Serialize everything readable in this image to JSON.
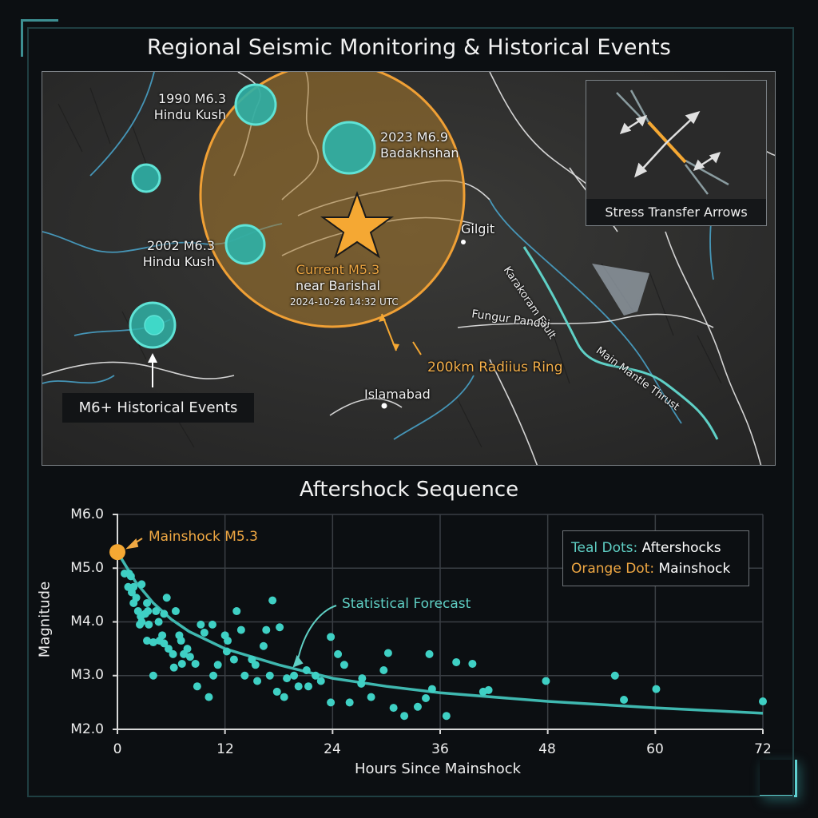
{
  "title": "Regional Seismic Monitoring & Historical Events",
  "colors": {
    "background": "#0c0f12",
    "teal": "#3fd0c4",
    "orange": "#f5a833",
    "ring_fill": "#7a5a2a",
    "grid": "#3a3f44",
    "axis": "#d8d8d8"
  },
  "map": {
    "historical_events": [
      {
        "year": "1990 M6.3",
        "region": "Hindu Kush"
      },
      {
        "year": "2023 M6.9",
        "region": "Badakhshan"
      },
      {
        "year": "2002 M6.3",
        "region": "Hindu Kush"
      }
    ],
    "current_event": {
      "label": "Current M5.3",
      "location": "near Barishal",
      "timestamp": "2024-10-26 14:32 UTC"
    },
    "places": {
      "gilgit": "Gilgit",
      "islamabad": "Islamabad",
      "fungur": "Fungur Pandlii"
    },
    "faults": {
      "karakoram": "Karakoram Fault",
      "mmt": "Main Mantle Thrust"
    },
    "ring_label": "200km Radiius Ring",
    "callout_label": "M6+ Historical Events",
    "inset_caption": "Stress Transfer Arrows"
  },
  "chart": {
    "title": "Aftershock Sequence",
    "mainshock_annotation": "Mainshock M5.3",
    "forecast_annotation": "Statistical Forecast",
    "legend": {
      "teal_key": "Teal Dots:",
      "teal_value": "Aftershocks",
      "orange_key": "Orange Dot:",
      "orange_value": "Mainshock"
    },
    "y_ticks": [
      "M6.0",
      "M5.0",
      "M4.0",
      "M3.0",
      "M2.0"
    ],
    "x_ticks": [
      "0",
      "12",
      "24",
      "36",
      "48",
      "60",
      "72"
    ],
    "ylabel": "Magnitude",
    "xlabel": "Hours Since Mainshock"
  },
  "chart_data": {
    "type": "scatter",
    "title": "Aftershock Sequence",
    "xlabel": "Hours Since Mainshock",
    "ylabel": "Magnitude",
    "xlim": [
      0,
      72
    ],
    "ylim": [
      2.0,
      6.0
    ],
    "x_ticks": [
      0,
      12,
      24,
      36,
      48,
      60,
      72
    ],
    "y_ticks": [
      2.0,
      3.0,
      4.0,
      5.0,
      6.0
    ],
    "grid": true,
    "legend_position": "upper right",
    "legend": [
      "Teal Dots: Aftershocks",
      "Orange Dot: Mainshock"
    ],
    "series": [
      {
        "name": "Mainshock",
        "color": "#f5a833",
        "points": [
          [
            0,
            5.3
          ]
        ]
      },
      {
        "name": "Aftershocks",
        "color": "#3fd0c4",
        "points": [
          [
            0.8,
            4.9
          ],
          [
            1.3,
            4.9
          ],
          [
            1.5,
            4.85
          ],
          [
            1.2,
            4.65
          ],
          [
            1.8,
            4.65
          ],
          [
            2.7,
            4.7
          ],
          [
            1.6,
            4.55
          ],
          [
            2.1,
            4.45
          ],
          [
            1.8,
            4.35
          ],
          [
            2.3,
            4.2
          ],
          [
            2.6,
            4.1
          ],
          [
            2.7,
            4.0
          ],
          [
            2.5,
            3.95
          ],
          [
            3.3,
            4.35
          ],
          [
            3.1,
            4.15
          ],
          [
            3.4,
            4.2
          ],
          [
            3.5,
            3.95
          ],
          [
            4.3,
            4.2
          ],
          [
            4.6,
            4.0
          ],
          [
            4.7,
            3.65
          ],
          [
            5.0,
            3.75
          ],
          [
            3.3,
            3.65
          ],
          [
            4.0,
            3.62
          ],
          [
            5.2,
            3.6
          ],
          [
            5.5,
            4.45
          ],
          [
            5.2,
            4.15
          ],
          [
            6.5,
            4.2
          ],
          [
            5.7,
            3.5
          ],
          [
            6.2,
            3.4
          ],
          [
            6.9,
            3.75
          ],
          [
            7.1,
            3.65
          ],
          [
            7.4,
            3.4
          ],
          [
            4.0,
            3.0
          ],
          [
            6.3,
            3.15
          ],
          [
            7.8,
            3.5
          ],
          [
            8.1,
            3.35
          ],
          [
            7.2,
            3.22
          ],
          [
            8.7,
            3.22
          ],
          [
            8.9,
            2.8
          ],
          [
            10.2,
            2.6
          ],
          [
            9.3,
            3.95
          ],
          [
            9.7,
            3.8
          ],
          [
            10.6,
            3.95
          ],
          [
            10.7,
            3.0
          ],
          [
            11.2,
            3.2
          ],
          [
            12.0,
            3.75
          ],
          [
            12.3,
            3.65
          ],
          [
            12.2,
            3.45
          ],
          [
            13.3,
            4.2
          ],
          [
            13.8,
            3.85
          ],
          [
            13.0,
            3.3
          ],
          [
            14.2,
            3.0
          ],
          [
            15.0,
            3.3
          ],
          [
            15.4,
            3.2
          ],
          [
            15.6,
            2.9
          ],
          [
            16.3,
            3.55
          ],
          [
            16.6,
            3.85
          ],
          [
            17.3,
            4.4
          ],
          [
            18.1,
            3.9
          ],
          [
            17.0,
            3.0
          ],
          [
            17.8,
            2.7
          ],
          [
            18.6,
            2.6
          ],
          [
            18.9,
            2.95
          ],
          [
            19.7,
            3.0
          ],
          [
            20.2,
            2.8
          ],
          [
            21.1,
            3.1
          ],
          [
            21.3,
            2.8
          ],
          [
            22.1,
            3.0
          ],
          [
            22.7,
            2.9
          ],
          [
            23.8,
            3.72
          ],
          [
            24.6,
            3.4
          ],
          [
            25.3,
            3.2
          ],
          [
            23.8,
            2.5
          ],
          [
            25.9,
            2.5
          ],
          [
            27.2,
            2.85
          ],
          [
            27.3,
            2.95
          ],
          [
            28.3,
            2.6
          ],
          [
            29.7,
            3.1
          ],
          [
            30.2,
            3.42
          ],
          [
            30.8,
            2.4
          ],
          [
            32.0,
            2.25
          ],
          [
            33.5,
            2.42
          ],
          [
            34.4,
            2.58
          ],
          [
            34.8,
            3.4
          ],
          [
            35.1,
            2.75
          ],
          [
            36.7,
            2.25
          ],
          [
            37.8,
            3.25
          ],
          [
            39.6,
            3.22
          ],
          [
            40.8,
            2.7
          ],
          [
            41.4,
            2.73
          ],
          [
            47.8,
            2.9
          ],
          [
            55.5,
            3.0
          ],
          [
            56.5,
            2.55
          ],
          [
            60.1,
            2.75
          ],
          [
            72.0,
            2.52
          ]
        ]
      },
      {
        "name": "Statistical Forecast",
        "type": "line",
        "color": "#3fb8b0",
        "points": [
          [
            0,
            5.3
          ],
          [
            2,
            4.75
          ],
          [
            4,
            4.35
          ],
          [
            6,
            4.05
          ],
          [
            8,
            3.82
          ],
          [
            12,
            3.5
          ],
          [
            18,
            3.2
          ],
          [
            24,
            2.95
          ],
          [
            30,
            2.8
          ],
          [
            36,
            2.68
          ],
          [
            48,
            2.52
          ],
          [
            60,
            2.4
          ],
          [
            72,
            2.3
          ]
        ]
      }
    ]
  }
}
